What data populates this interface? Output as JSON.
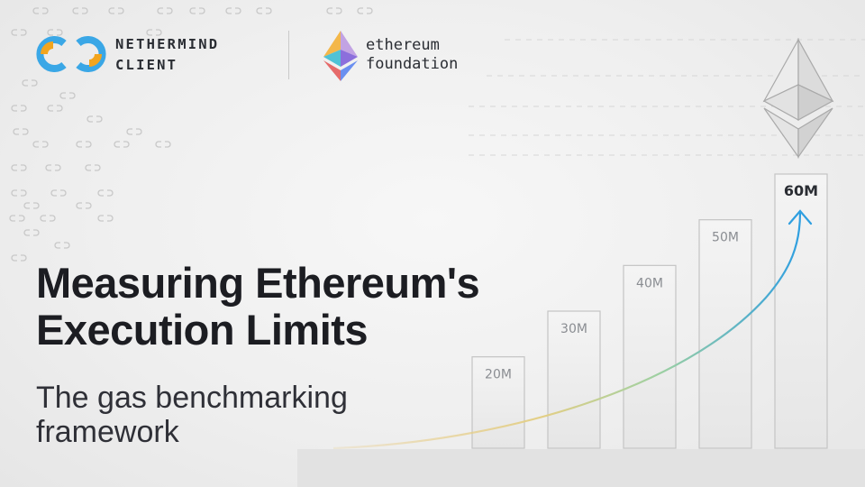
{
  "branding": {
    "nethermind_line1": "NETHERMIND",
    "nethermind_line2": "CLIENT",
    "ethereum_line1": "ethereum",
    "ethereum_line2": "foundation"
  },
  "headline": {
    "line1": "Measuring Ethereum's",
    "line2": "Execution Limits"
  },
  "subheadline": {
    "line1": "The gas benchmarking",
    "line2": "framework"
  },
  "chart_data": {
    "type": "bar",
    "categories": [
      "20M",
      "30M",
      "40M",
      "50M",
      "60M"
    ],
    "values": [
      20,
      30,
      40,
      50,
      60
    ],
    "title": "",
    "xlabel": "",
    "ylabel": "",
    "ylim": [
      0,
      65
    ],
    "highlight_category": "60M",
    "trend_arrow": true,
    "grid": false,
    "legend": "none"
  },
  "colors": {
    "nethermind_blue": "#3aa7e6",
    "nethermind_orange": "#f2a51e",
    "curve_start": "#e9c77b",
    "curve_mid": "#9dd0a2",
    "curve_end": "#2f9fe0",
    "text_dark": "#1c1d22"
  }
}
